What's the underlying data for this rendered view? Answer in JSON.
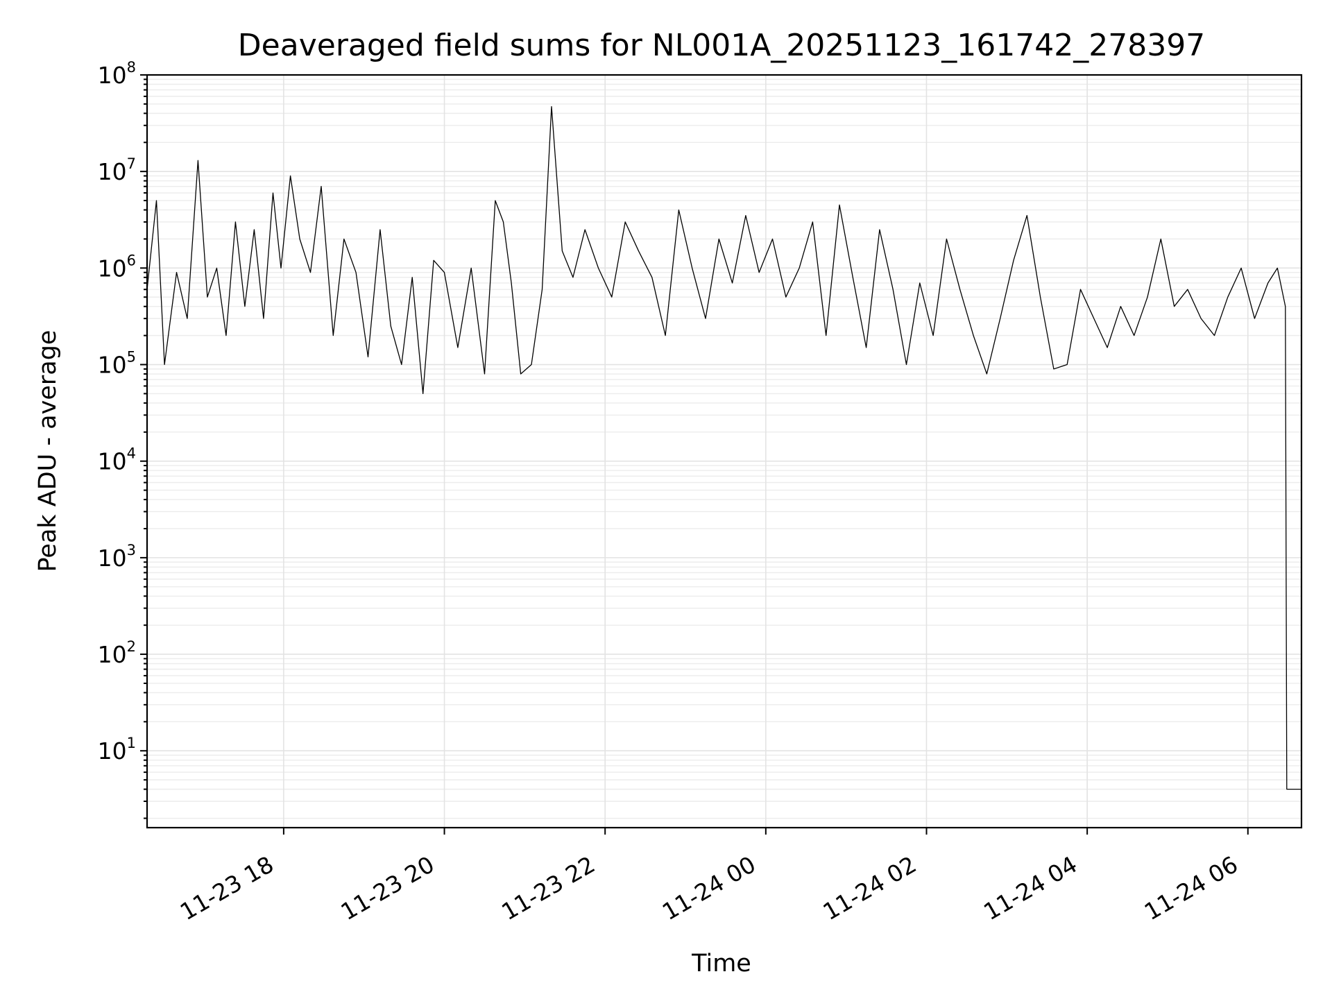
{
  "chart_data": {
    "type": "line",
    "title": "Deaveraged field sums for NL001A_20251123_161742_278397",
    "xlabel": "Time",
    "ylabel": "Peak ADU - average",
    "yscale": "log",
    "xlim": [
      "2025-11-23 16:18",
      "2025-11-24 06:40"
    ],
    "ylim": [
      1.6,
      100000000
    ],
    "grid": true,
    "legend": "none",
    "line_color": "#000000",
    "x_ticks": [
      {
        "value": "2025-11-23 18:00",
        "label": "11-23 18"
      },
      {
        "value": "2025-11-23 20:00",
        "label": "11-23 20"
      },
      {
        "value": "2025-11-23 22:00",
        "label": "11-23 22"
      },
      {
        "value": "2025-11-24 00:00",
        "label": "11-24 00"
      },
      {
        "value": "2025-11-24 02:00",
        "label": "11-24 02"
      },
      {
        "value": "2025-11-24 04:00",
        "label": "11-24 04"
      },
      {
        "value": "2025-11-24 06:00",
        "label": "11-24 06"
      }
    ],
    "y_ticks": [
      {
        "value": 10,
        "base": "10",
        "exp": "1"
      },
      {
        "value": 100,
        "base": "10",
        "exp": "2"
      },
      {
        "value": 1000,
        "base": "10",
        "exp": "3"
      },
      {
        "value": 10000,
        "base": "10",
        "exp": "4"
      },
      {
        "value": 100000,
        "base": "10",
        "exp": "5"
      },
      {
        "value": 1000000,
        "base": "10",
        "exp": "6"
      },
      {
        "value": 10000000,
        "base": "10",
        "exp": "7"
      },
      {
        "value": 100000000,
        "base": "10",
        "exp": "8"
      }
    ],
    "series": [
      {
        "x": [
          "2025-11-23 16:18",
          "2025-11-23 16:25",
          "2025-11-23 16:31",
          "2025-11-23 16:40",
          "2025-11-23 16:48",
          "2025-11-23 16:56",
          "2025-11-23 17:03",
          "2025-11-23 17:10",
          "2025-11-23 17:17",
          "2025-11-23 17:24",
          "2025-11-23 17:31",
          "2025-11-23 17:38",
          "2025-11-23 17:45",
          "2025-11-23 17:52",
          "2025-11-23 17:58",
          "2025-11-23 18:05",
          "2025-11-23 18:12",
          "2025-11-23 18:20",
          "2025-11-23 18:28",
          "2025-11-23 18:37",
          "2025-11-23 18:45",
          "2025-11-23 18:54",
          "2025-11-23 19:03",
          "2025-11-23 19:12",
          "2025-11-23 19:20",
          "2025-11-23 19:28",
          "2025-11-23 19:36",
          "2025-11-23 19:44",
          "2025-11-23 19:52",
          "2025-11-23 20:00",
          "2025-11-23 20:10",
          "2025-11-23 20:20",
          "2025-11-23 20:30",
          "2025-11-23 20:38",
          "2025-11-23 20:44",
          "2025-11-23 20:50",
          "2025-11-23 20:57",
          "2025-11-23 21:05",
          "2025-11-23 21:13",
          "2025-11-23 21:20",
          "2025-11-23 21:28",
          "2025-11-23 21:36",
          "2025-11-23 21:45",
          "2025-11-23 21:55",
          "2025-11-23 22:05",
          "2025-11-23 22:15",
          "2025-11-23 22:25",
          "2025-11-23 22:35",
          "2025-11-23 22:45",
          "2025-11-23 22:55",
          "2025-11-23 23:05",
          "2025-11-23 23:15",
          "2025-11-23 23:25",
          "2025-11-23 23:35",
          "2025-11-23 23:45",
          "2025-11-23 23:55",
          "2025-11-24 00:05",
          "2025-11-24 00:15",
          "2025-11-24 00:25",
          "2025-11-24 00:35",
          "2025-11-24 00:45",
          "2025-11-24 00:55",
          "2025-11-24 01:05",
          "2025-11-24 01:15",
          "2025-11-24 01:25",
          "2025-11-24 01:35",
          "2025-11-24 01:45",
          "2025-11-24 01:55",
          "2025-11-24 02:05",
          "2025-11-24 02:15",
          "2025-11-24 02:25",
          "2025-11-24 02:35",
          "2025-11-24 02:45",
          "2025-11-24 02:55",
          "2025-11-24 03:05",
          "2025-11-24 03:15",
          "2025-11-24 03:25",
          "2025-11-24 03:35",
          "2025-11-24 03:45",
          "2025-11-24 03:55",
          "2025-11-24 04:05",
          "2025-11-24 04:15",
          "2025-11-24 04:25",
          "2025-11-24 04:35",
          "2025-11-24 04:45",
          "2025-11-24 04:55",
          "2025-11-24 05:05",
          "2025-11-24 05:15",
          "2025-11-24 05:25",
          "2025-11-24 05:35",
          "2025-11-24 05:45",
          "2025-11-24 05:55",
          "2025-11-24 06:05",
          "2025-11-24 06:15",
          "2025-11-24 06:22",
          "2025-11-24 06:28",
          "2025-11-24 06:29",
          "2025-11-24 06:40"
        ],
        "y": [
          600000,
          5000000,
          100000,
          900000,
          300000,
          13000000,
          500000,
          1000000,
          200000,
          3000000,
          400000,
          2500000,
          300000,
          6000000,
          1000000,
          9000000,
          2000000,
          900000,
          7000000,
          200000,
          2000000,
          900000,
          120000,
          2500000,
          250000,
          100000,
          800000,
          50000,
          1200000,
          900000,
          150000,
          1000000,
          80000,
          5000000,
          3000000,
          700000,
          80000,
          100000,
          600000,
          47000000,
          1500000,
          800000,
          2500000,
          1000000,
          500000,
          3000000,
          1500000,
          800000,
          200000,
          4000000,
          1000000,
          300000,
          2000000,
          700000,
          3500000,
          900000,
          2000000,
          500000,
          1000000,
          3000000,
          200000,
          4500000,
          800000,
          150000,
          2500000,
          600000,
          100000,
          700000,
          200000,
          2000000,
          600000,
          200000,
          80000,
          300000,
          1200000,
          3500000,
          500000,
          90000,
          100000,
          600000,
          300000,
          150000,
          400000,
          200000,
          500000,
          2000000,
          400000,
          600000,
          300000,
          200000,
          500000,
          1000000,
          300000,
          700000,
          1000000,
          400000,
          4,
          4
        ]
      }
    ]
  }
}
